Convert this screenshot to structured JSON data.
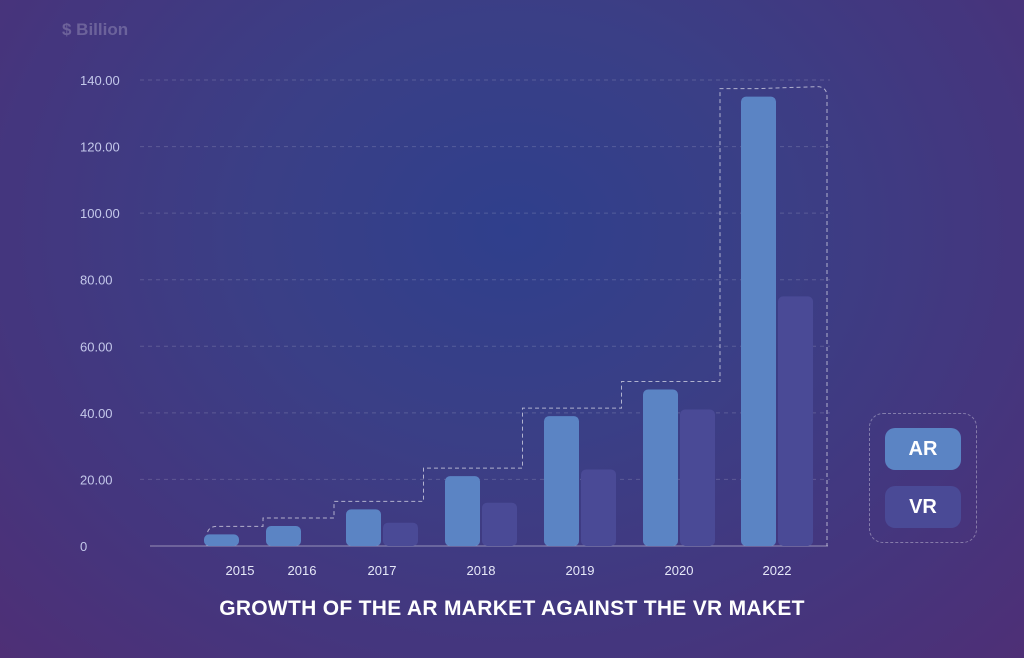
{
  "chart_data": {
    "type": "bar",
    "title": "GROWTH OF THE AR MARKET AGAINST THE VR MAKET",
    "ylabel": "$ Billion",
    "xlabel": "",
    "ylim": [
      0,
      140
    ],
    "yticks": [
      "0",
      "20.00",
      "40.00",
      "60.00",
      "80.00",
      "100.00",
      "120.00",
      "140.00"
    ],
    "categories": [
      "2015",
      "2016",
      "2017",
      "2018",
      "2019",
      "2020",
      "2022"
    ],
    "series": [
      {
        "name": "AR",
        "color": "#5b84c4",
        "values": [
          3.5,
          6,
          11,
          21,
          39,
          47,
          135
        ]
      },
      {
        "name": "VR",
        "color": "#4a4a96",
        "values": [
          null,
          null,
          7,
          13,
          23,
          41,
          75
        ]
      }
    ],
    "grid": true,
    "legend": "right"
  }
}
